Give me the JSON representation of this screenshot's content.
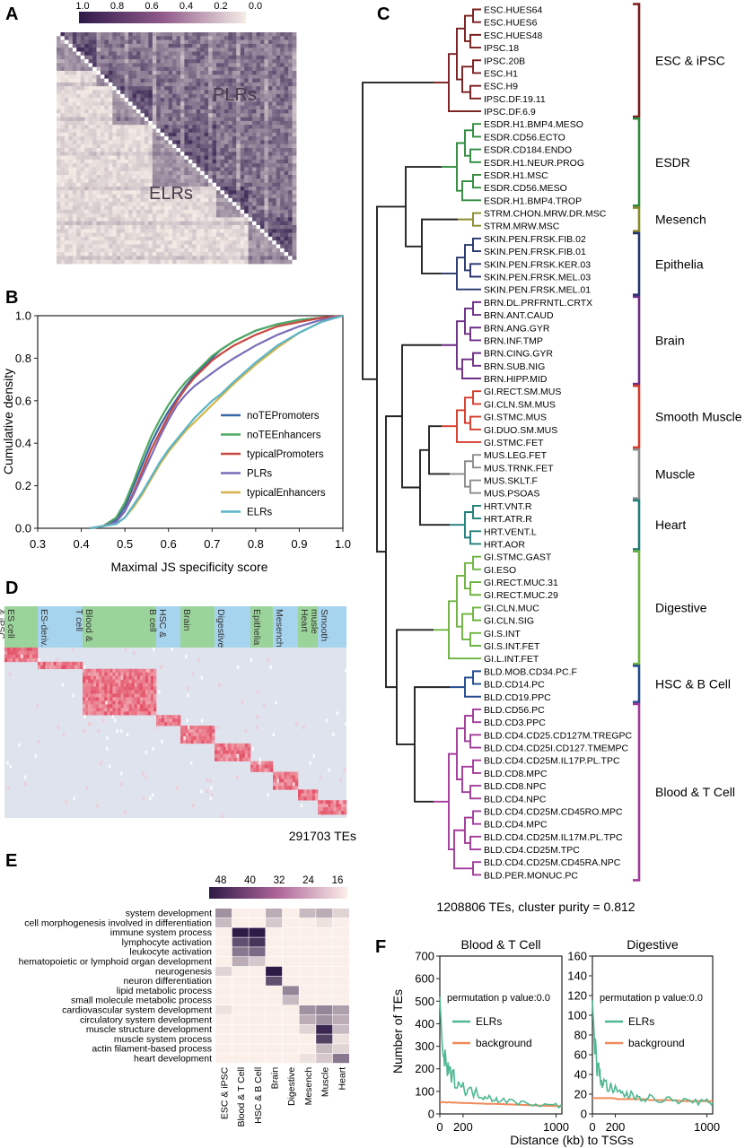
{
  "colors": {
    "heat_dark": "#2f1a4b",
    "heat_light": "#f5ece6",
    "hm_red": "#e03a52",
    "hm_bg": "#dfe3ee",
    "hm_band_green": "#9bd49b",
    "hm_band_blue": "#a6d3ee",
    "go_dark": "#2e1a47",
    "go_light": "#fbefe9",
    "elrs": "#4fb890",
    "background": "#f08a5a",
    "esc": "#7a1c1c",
    "esdr": "#2f8b3c",
    "mesench": "#8a8a2a",
    "epithelia": "#26356e",
    "brain": "#6b2d85",
    "smooth": "#d63a2a",
    "muscle": "#8c8c8c",
    "heart": "#1f7f7a",
    "digestive": "#6db33f",
    "hsc": "#214a8f",
    "blood": "#a23a9a",
    "trunk": "#222222"
  },
  "panelA": {
    "letter": "A",
    "colorbar_ticks": [
      "1.0",
      "0.8",
      "0.6",
      "0.4",
      "0.2",
      "0.0"
    ],
    "label_upper": "PLRs",
    "label_lower": "ELRs"
  },
  "panelB": {
    "letter": "B",
    "xlabel": "Maximal JS specificity score",
    "ylabel": "Cumulative density",
    "xticks": [
      "0.3",
      "0.4",
      "0.5",
      "0.6",
      "0.7",
      "0.8",
      "0.9",
      "1.0"
    ],
    "yticks": [
      "0.0",
      "0.2",
      "0.4",
      "0.6",
      "0.8",
      "1.0"
    ]
  },
  "panelD": {
    "letter": "D",
    "groups": [
      "ES cell & iPSC",
      "ES-deriv.",
      "Blood & T cell",
      "HSC & B cell",
      "Brain",
      "Digestive",
      "Epithelia",
      "Mesench",
      "Heart",
      "Smooth musle"
    ],
    "caption": "291703 TEs"
  },
  "panelE": {
    "letter": "E",
    "colorbar_ticks": [
      "48",
      "40",
      "32",
      "24",
      "16"
    ],
    "rows": [
      "system development",
      "cell morphogenesis involved in differentiation",
      "immune system process",
      "lymphocyte activation",
      "leukocyte activation",
      "hematopoietic or lymphoid organ development",
      "neurogenesis",
      "neuron differentiation",
      "lipid metabolic process",
      "small molecule metabolic process",
      "cardiovascular system development",
      "circulatory system development",
      "muscle structure development",
      "muscle system process",
      "actin filament-based process",
      "heart development"
    ],
    "cols": [
      "ESC & iPSC",
      "Blood & T Cell",
      "HSC & B Cell",
      "Brain",
      "Digestive",
      "Mesench",
      "Muscle",
      "Heart"
    ]
  },
  "panelC": {
    "letter": "C",
    "caption": "1208806 TEs, cluster purity = 0.812",
    "leaves": [
      "ESC.HUES64",
      "ESC.HUES6",
      "ESC.HUES48",
      "IPSC.18",
      "IPSC.20B",
      "ESC.H1",
      "ESC.H9",
      "IPSC.DF.19.11",
      "IPSC.DF.6.9",
      "ESDR.H1.BMP4.MESO",
      "ESDR.CD56.ECTO",
      "ESDR.CD184.ENDO",
      "ESDR.H1.NEUR.PROG",
      "ESDR.H1.MSC",
      "ESDR.CD56.MESO",
      "ESDR.H1.BMP4.TROP",
      "STRM.CHON.MRW.DR.MSC",
      "STRM.MRW.MSC",
      "SKIN.PEN.FRSK.FIB.02",
      "SKIN.PEN.FRSK.FIB.01",
      "SKIN.PEN.FRSK.KER.03",
      "SKIN.PEN.FRSK.MEL.03",
      "SKIN.PEN.FRSK.MEL.01",
      "BRN.DL.PRFRNTL.CRTX",
      "BRN.ANT.CAUD",
      "BRN.ANG.GYR",
      "BRN.INF.TMP",
      "BRN.CING.GYR",
      "BRN.SUB.NIG",
      "BRN.HIPP.MID",
      "GI.RECT.SM.MUS",
      "GI.CLN.SM.MUS",
      "GI.STMC.MUS",
      "GI.DUO.SM.MUS",
      "GI.STMC.FET",
      "MUS.LEG.FET",
      "MUS.TRNK.FET",
      "MUS.SKLT.F",
      "MUS.PSOAS",
      "HRT.VNT.R",
      "HRT.ATR.R",
      "HRT.VENT.L",
      "HRT.AOR",
      "GI.STMC.GAST",
      "GI.ESO",
      "GI.RECT.MUC.31",
      "GI.RECT.MUC.29",
      "GI.CLN.MUC",
      "GI.CLN.SIG",
      "GI.S.INT",
      "GI.S.INT.FET",
      "GI.L.INT.FET",
      "BLD.MOB.CD34.PC.F",
      "BLD.CD14.PC",
      "BLD.CD19.PPC",
      "BLD.CD56.PC",
      "BLD.CD3.PPC",
      "BLD.CD4.CD25.CD127M.TREGPC",
      "BLD.CD4.CD25I.CD127.TMEMPC",
      "BLD.CD4.CD25M.IL17P.PL.TPC",
      "BLD.CD8.MPC",
      "BLD.CD8.NPC",
      "BLD.CD4.NPC",
      "BLD.CD4.CD25M.CD45RO.MPC",
      "BLD.CD4.MPC",
      "BLD.CD4.CD25M.IL17M.PL.TPC",
      "BLD.CD4.CD25M.TPC",
      "BLD.CD4.CD25M.CD45RA.NPC",
      "BLD.PER.MONUC.PC"
    ],
    "groups": [
      {
        "label": "ESC & iPSC",
        "color": "#7a1c1c",
        "from": 0,
        "to": 8
      },
      {
        "label": "ESDR",
        "color": "#2f8b3c",
        "from": 9,
        "to": 15
      },
      {
        "label": "Mesench",
        "color": "#8a8a2a",
        "from": 16,
        "to": 17
      },
      {
        "label": "Epithelia",
        "color": "#26356e",
        "from": 18,
        "to": 22
      },
      {
        "label": "Brain",
        "color": "#6b2d85",
        "from": 23,
        "to": 29
      },
      {
        "label": "Smooth Muscle",
        "color": "#d63a2a",
        "from": 30,
        "to": 34
      },
      {
        "label": "Muscle",
        "color": "#8c8c8c",
        "from": 35,
        "to": 38
      },
      {
        "label": "Heart",
        "color": "#1f7f7a",
        "from": 39,
        "to": 42
      },
      {
        "label": "Digestive",
        "color": "#6db33f",
        "from": 43,
        "to": 51
      },
      {
        "label": "HSC & B Cell",
        "color": "#214a8f",
        "from": 52,
        "to": 54
      },
      {
        "label": "Blood & T Cell",
        "color": "#a23a9a",
        "from": 55,
        "to": 68
      }
    ]
  },
  "panelF": {
    "letter": "F",
    "ylabel": "Number of TEs",
    "xlabel": "Distance (kb) to TSGs",
    "perm_text": "permutation p value:0.0",
    "legend": [
      "ELRs",
      "background"
    ]
  },
  "chart_data": [
    {
      "panel": "B",
      "type": "line",
      "xlabel": "Maximal JS specificity score",
      "ylabel": "Cumulative density",
      "xlim": [
        0.3,
        1.0
      ],
      "ylim": [
        0.0,
        1.0
      ],
      "x": [
        0.42,
        0.45,
        0.48,
        0.5,
        0.52,
        0.54,
        0.56,
        0.58,
        0.6,
        0.62,
        0.64,
        0.66,
        0.68,
        0.7,
        0.72,
        0.75,
        0.8,
        0.85,
        0.9,
        0.95,
        1.0
      ],
      "legend_position": "lower right",
      "series": [
        {
          "name": "noTEPromoters",
          "color": "#3a66a8",
          "values": [
            0.0,
            0.01,
            0.04,
            0.1,
            0.2,
            0.3,
            0.4,
            0.48,
            0.55,
            0.61,
            0.67,
            0.72,
            0.76,
            0.8,
            0.84,
            0.88,
            0.93,
            0.96,
            0.98,
            0.99,
            1.0
          ]
        },
        {
          "name": "noTEEnhancers",
          "color": "#4ea862",
          "values": [
            0.0,
            0.01,
            0.05,
            0.12,
            0.22,
            0.33,
            0.43,
            0.51,
            0.58,
            0.64,
            0.69,
            0.73,
            0.77,
            0.81,
            0.84,
            0.88,
            0.93,
            0.96,
            0.98,
            0.99,
            1.0
          ]
        },
        {
          "name": "typicalPromoters",
          "color": "#c9483f",
          "values": [
            0.0,
            0.01,
            0.03,
            0.08,
            0.17,
            0.27,
            0.37,
            0.45,
            0.53,
            0.6,
            0.66,
            0.71,
            0.75,
            0.79,
            0.82,
            0.86,
            0.91,
            0.95,
            0.97,
            0.99,
            1.0
          ]
        },
        {
          "name": "PLRs",
          "color": "#7b6cb8",
          "values": [
            0.0,
            0.01,
            0.03,
            0.08,
            0.16,
            0.25,
            0.34,
            0.43,
            0.51,
            0.58,
            0.63,
            0.67,
            0.7,
            0.73,
            0.76,
            0.8,
            0.86,
            0.91,
            0.95,
            0.98,
            1.0
          ]
        },
        {
          "name": "typicalEnhancers",
          "color": "#d4b34a",
          "values": [
            0.0,
            0.01,
            0.02,
            0.05,
            0.1,
            0.16,
            0.23,
            0.3,
            0.36,
            0.41,
            0.46,
            0.5,
            0.54,
            0.58,
            0.62,
            0.68,
            0.77,
            0.85,
            0.92,
            0.97,
            1.0
          ]
        },
        {
          "name": "ELRs",
          "color": "#5ab4c9",
          "values": [
            0.0,
            0.01,
            0.02,
            0.05,
            0.11,
            0.17,
            0.24,
            0.31,
            0.37,
            0.42,
            0.47,
            0.52,
            0.56,
            0.6,
            0.63,
            0.69,
            0.78,
            0.86,
            0.92,
            0.97,
            1.0
          ]
        }
      ]
    },
    {
      "panel": "E",
      "type": "heatmap",
      "colorbar_range": [
        16,
        48
      ],
      "rows": [
        "system development",
        "cell morphogenesis involved in differentiation",
        "immune system process",
        "lymphocyte activation",
        "leukocyte activation",
        "hematopoietic or lymphoid organ development",
        "neurogenesis",
        "neuron differentiation",
        "lipid metabolic process",
        "small molecule metabolic process",
        "cardiovascular system development",
        "circulatory system development",
        "muscle structure development",
        "muscle system process",
        "actin filament-based process",
        "heart development"
      ],
      "cols": [
        "ESC & iPSC",
        "Blood & T Cell",
        "HSC & B Cell",
        "Brain",
        "Digestive",
        "Mesench",
        "Muscle",
        "Heart"
      ],
      "values": [
        [
          30,
          6,
          6,
          26,
          10,
          24,
          26,
          20
        ],
        [
          24,
          6,
          6,
          22,
          8,
          16,
          18,
          14
        ],
        [
          4,
          48,
          48,
          4,
          4,
          6,
          4,
          4
        ],
        [
          4,
          40,
          44,
          2,
          2,
          4,
          2,
          2
        ],
        [
          4,
          34,
          36,
          2,
          2,
          4,
          2,
          2
        ],
        [
          14,
          26,
          22,
          4,
          4,
          8,
          6,
          6
        ],
        [
          20,
          4,
          4,
          48,
          4,
          14,
          14,
          10
        ],
        [
          14,
          4,
          4,
          40,
          4,
          10,
          10,
          8
        ],
        [
          4,
          4,
          4,
          6,
          32,
          4,
          4,
          4
        ],
        [
          2,
          2,
          2,
          4,
          24,
          4,
          4,
          4
        ],
        [
          18,
          4,
          4,
          6,
          6,
          30,
          32,
          28
        ],
        [
          16,
          4,
          4,
          6,
          6,
          26,
          30,
          26
        ],
        [
          8,
          2,
          2,
          4,
          4,
          20,
          46,
          24
        ],
        [
          4,
          2,
          2,
          2,
          4,
          16,
          42,
          18
        ],
        [
          6,
          4,
          4,
          10,
          4,
          16,
          24,
          20
        ],
        [
          8,
          2,
          2,
          2,
          4,
          18,
          22,
          34
        ]
      ]
    },
    {
      "panel": "F",
      "type": "line",
      "title": "Blood & T Cell",
      "xlabel": "Distance (kb) to TSGs",
      "ylabel": "Number of TEs",
      "xlim": [
        0,
        1050
      ],
      "ylim": [
        0,
        700
      ],
      "xticks": [
        0,
        200,
        1000
      ],
      "yticks": [
        0,
        100,
        200,
        300,
        400,
        500,
        600,
        700
      ],
      "x": [
        0,
        20,
        40,
        60,
        80,
        100,
        140,
        180,
        220,
        260,
        300,
        350,
        400,
        450,
        500,
        600,
        700,
        800,
        900,
        1000,
        1050
      ],
      "series": [
        {
          "name": "ELRs",
          "color": "#4fb890",
          "values": [
            520,
            310,
            240,
            200,
            180,
            170,
            150,
            130,
            110,
            100,
            95,
            85,
            80,
            70,
            65,
            55,
            50,
            45,
            40,
            38,
            35
          ]
        },
        {
          "name": "background",
          "color": "#f08a5a",
          "values": [
            50,
            52,
            52,
            50,
            52,
            50,
            50,
            49,
            48,
            48,
            47,
            46,
            45,
            45,
            44,
            42,
            40,
            38,
            36,
            35,
            34
          ]
        }
      ]
    },
    {
      "panel": "F",
      "type": "line",
      "title": "Digestive",
      "xlabel": "Distance (kb) to TSGs",
      "xlim": [
        0,
        1050
      ],
      "ylim": [
        0,
        160
      ],
      "xticks": [
        0,
        200,
        1000
      ],
      "yticks": [
        0,
        20,
        40,
        60,
        80,
        100,
        120,
        140,
        160
      ],
      "x": [
        0,
        20,
        40,
        60,
        80,
        100,
        140,
        180,
        220,
        260,
        300,
        350,
        400,
        450,
        500,
        600,
        700,
        800,
        900,
        1000,
        1050
      ],
      "series": [
        {
          "name": "ELRs",
          "color": "#4fb890",
          "values": [
            115,
            70,
            50,
            40,
            34,
            30,
            28,
            24,
            22,
            20,
            20,
            18,
            18,
            16,
            16,
            15,
            14,
            13,
            12,
            12,
            11
          ]
        },
        {
          "name": "background",
          "color": "#f08a5a",
          "values": [
            16,
            16,
            16,
            16,
            16,
            16,
            16,
            16,
            15,
            15,
            15,
            15,
            15,
            15,
            14,
            14,
            14,
            13,
            13,
            13,
            13
          ]
        }
      ]
    }
  ]
}
